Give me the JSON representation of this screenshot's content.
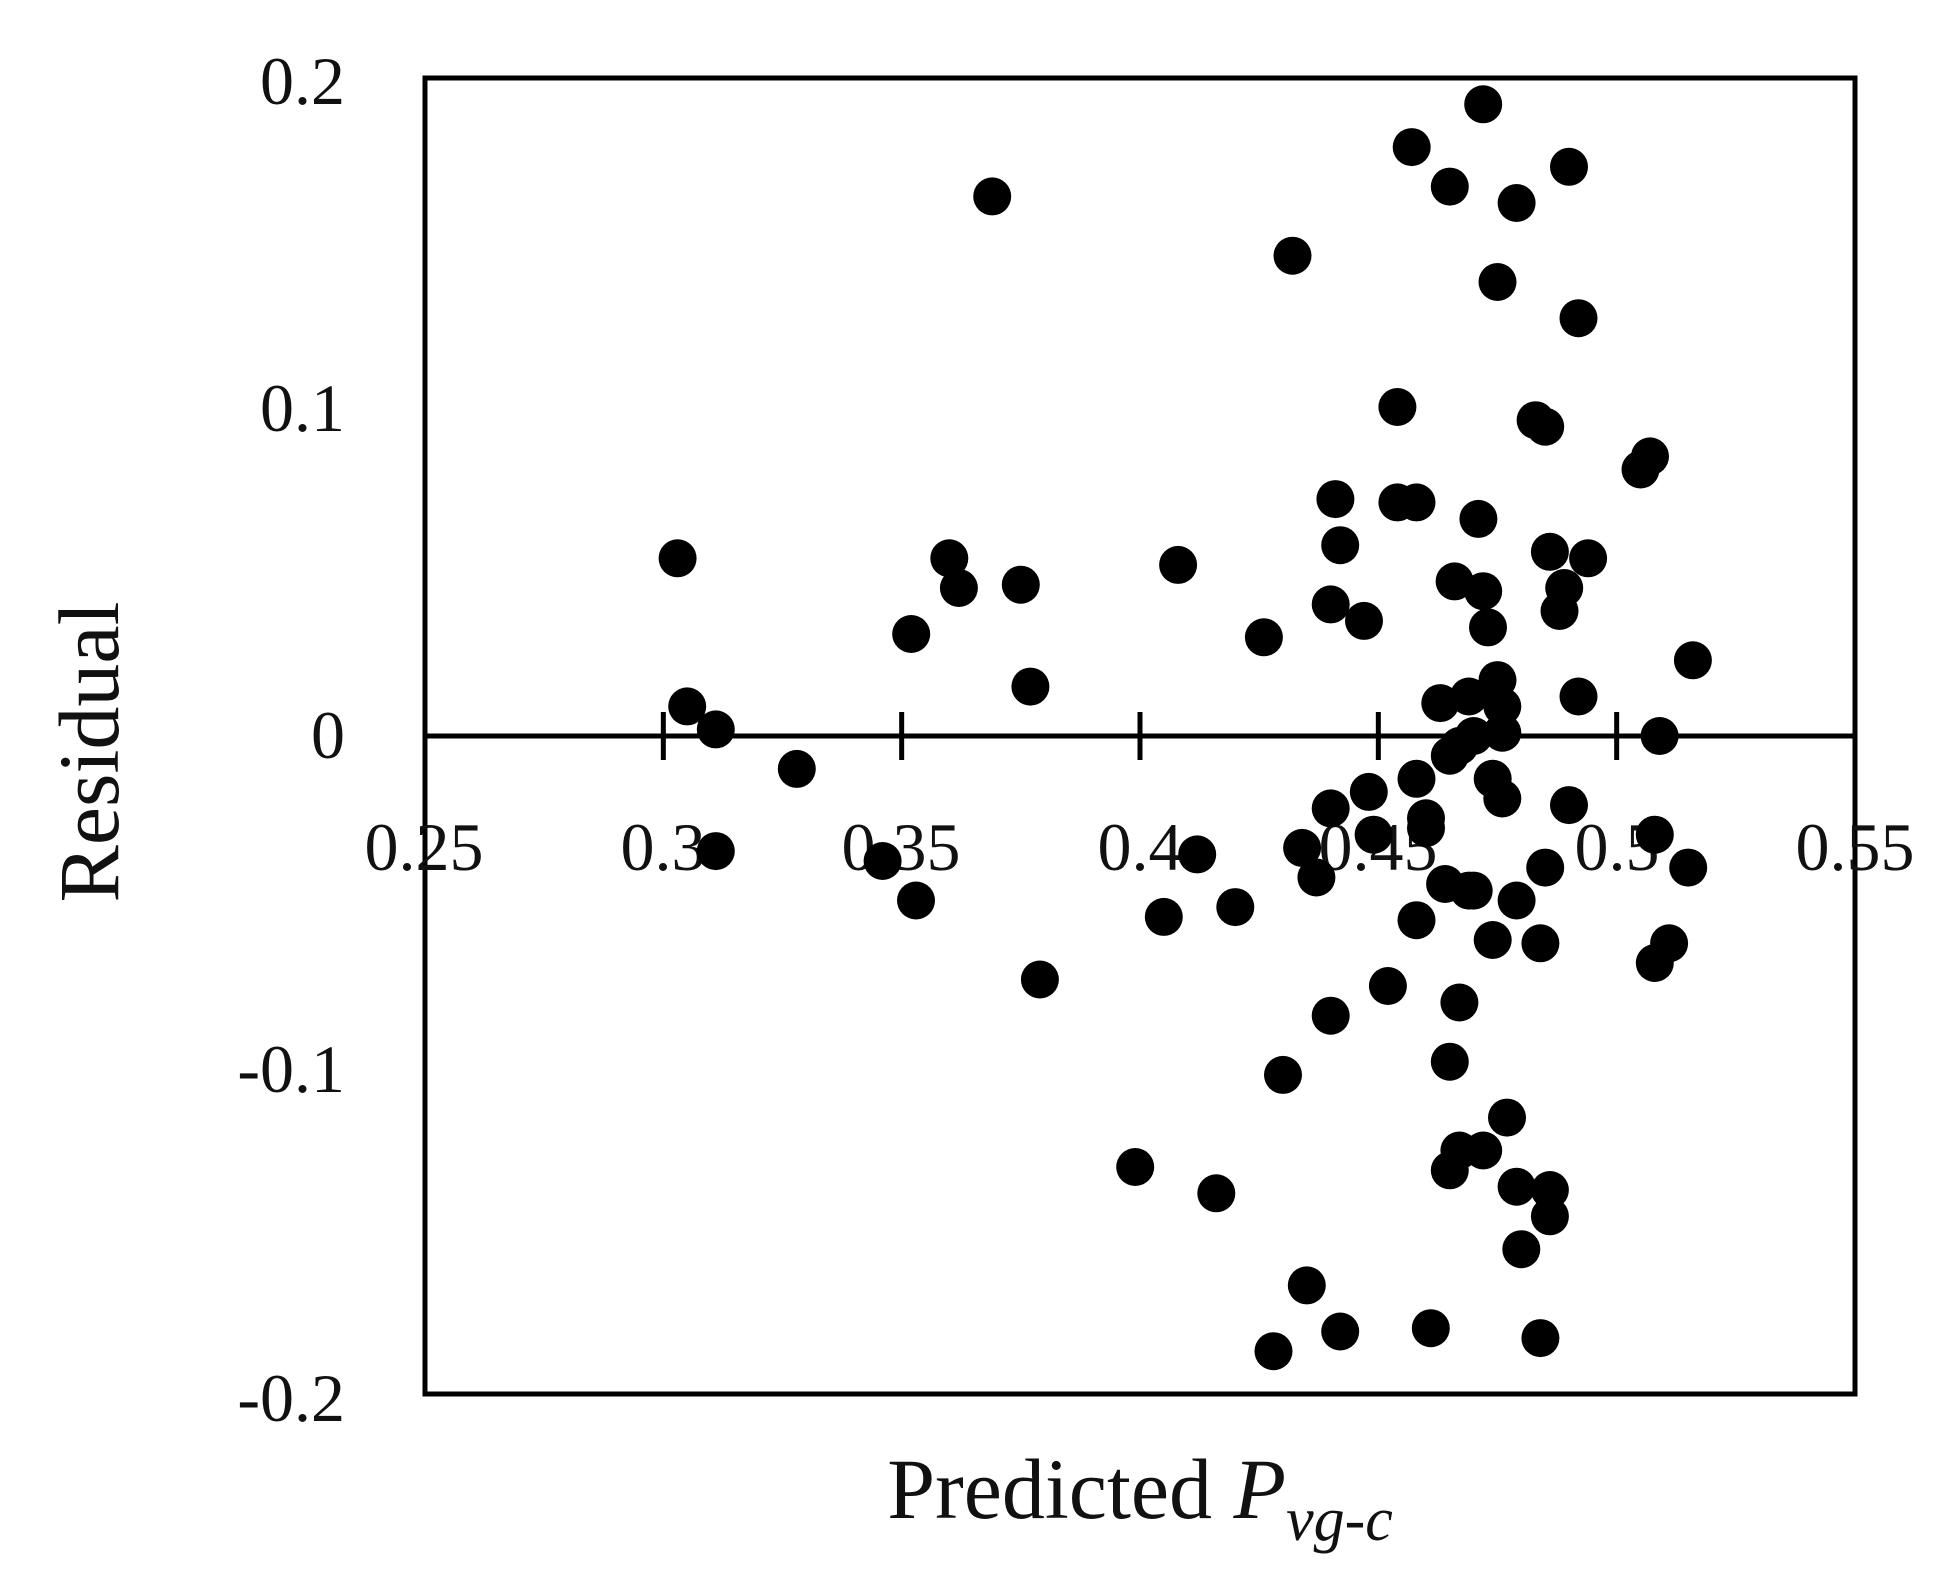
{
  "chart_data": {
    "type": "scatter",
    "xlabel": {
      "text": "Predicted ",
      "symbol": "P",
      "subscript": "vg-c"
    },
    "ylabel": "Residual",
    "xlim": [
      0.25,
      0.55
    ],
    "ylim": [
      -0.2,
      0.2
    ],
    "x_ticks": [
      0.25,
      0.3,
      0.35,
      0.4,
      0.45,
      0.5,
      0.55
    ],
    "x_tick_labels": [
      "0.25",
      "0.3",
      "0.35",
      "0.4",
      "0.45",
      "0.5",
      "0.55"
    ],
    "y_ticks": [
      -0.2,
      -0.1,
      0,
      0.1,
      0.2
    ],
    "y_tick_labels": [
      "-0.2",
      "-0.1",
      "0",
      "0.1",
      "0.2"
    ],
    "grid": false,
    "zero_line": true,
    "marker_color": "#000000",
    "series": [
      {
        "points": [
          [
            0.303,
            0.054
          ],
          [
            0.305,
            0.009
          ],
          [
            0.311,
            0.002
          ],
          [
            0.311,
            -0.035
          ],
          [
            0.328,
            -0.01
          ],
          [
            0.346,
            -0.038
          ],
          [
            0.352,
            0.031
          ],
          [
            0.353,
            -0.05
          ],
          [
            0.36,
            0.054
          ],
          [
            0.362,
            0.045
          ],
          [
            0.369,
            0.164
          ],
          [
            0.375,
            0.046
          ],
          [
            0.377,
            0.015
          ],
          [
            0.379,
            -0.074
          ],
          [
            0.399,
            -0.131
          ],
          [
            0.405,
            -0.055
          ],
          [
            0.408,
            0.052
          ],
          [
            0.412,
            -0.036
          ],
          [
            0.416,
            -0.139
          ],
          [
            0.42,
            -0.052
          ],
          [
            0.426,
            0.03
          ],
          [
            0.428,
            -0.187
          ],
          [
            0.43,
            -0.103
          ],
          [
            0.432,
            0.146
          ],
          [
            0.434,
            -0.034
          ],
          [
            0.435,
            -0.167
          ],
          [
            0.437,
            -0.043
          ],
          [
            0.44,
            0.04
          ],
          [
            0.44,
            -0.022
          ],
          [
            0.44,
            -0.085
          ],
          [
            0.441,
            0.072
          ],
          [
            0.442,
            0.058
          ],
          [
            0.442,
            -0.181
          ],
          [
            0.447,
            0.035
          ],
          [
            0.448,
            -0.017
          ],
          [
            0.449,
            -0.03
          ],
          [
            0.452,
            -0.076
          ],
          [
            0.454,
            0.1
          ],
          [
            0.454,
            0.071
          ],
          [
            0.457,
            0.179
          ],
          [
            0.458,
            0.071
          ],
          [
            0.458,
            -0.013
          ],
          [
            0.458,
            -0.056
          ],
          [
            0.46,
            -0.028
          ],
          [
            0.46,
            -0.025
          ],
          [
            0.461,
            -0.18
          ],
          [
            0.463,
            0.01
          ],
          [
            0.464,
            -0.045
          ],
          [
            0.465,
            0.167
          ],
          [
            0.465,
            -0.099
          ],
          [
            0.465,
            -0.132
          ],
          [
            0.465,
            -0.006
          ],
          [
            0.466,
            0.047
          ],
          [
            0.467,
            -0.081
          ],
          [
            0.467,
            -0.126
          ],
          [
            0.467,
            -0.003
          ],
          [
            0.469,
            0.012
          ],
          [
            0.469,
            -0.047
          ],
          [
            0.47,
            0.0
          ],
          [
            0.47,
            -0.047
          ],
          [
            0.471,
            0.066
          ],
          [
            0.472,
            0.192
          ],
          [
            0.472,
            0.044
          ],
          [
            0.472,
            -0.126
          ],
          [
            0.473,
            0.033
          ],
          [
            0.474,
            -0.062
          ],
          [
            0.474,
            -0.013
          ],
          [
            0.475,
            0.138
          ],
          [
            0.475,
            0.017
          ],
          [
            0.476,
            0.009
          ],
          [
            0.476,
            -0.019
          ],
          [
            0.476,
            0.001
          ],
          [
            0.477,
            -0.116
          ],
          [
            0.479,
            0.162
          ],
          [
            0.479,
            -0.05
          ],
          [
            0.479,
            -0.137
          ],
          [
            0.48,
            -0.156
          ],
          [
            0.483,
            0.096
          ],
          [
            0.484,
            -0.183
          ],
          [
            0.484,
            -0.063
          ],
          [
            0.485,
            -0.04
          ],
          [
            0.485,
            0.094
          ],
          [
            0.486,
            0.056
          ],
          [
            0.486,
            -0.138
          ],
          [
            0.486,
            -0.146
          ],
          [
            0.488,
            0.038
          ],
          [
            0.489,
            0.045
          ],
          [
            0.49,
            -0.021
          ],
          [
            0.49,
            0.173
          ],
          [
            0.492,
            0.127
          ],
          [
            0.492,
            0.012
          ],
          [
            0.494,
            0.054
          ],
          [
            0.505,
            0.081
          ],
          [
            0.507,
            0.085
          ],
          [
            0.508,
            -0.03
          ],
          [
            0.508,
            -0.069
          ],
          [
            0.509,
            0.0
          ],
          [
            0.511,
            -0.063
          ],
          [
            0.515,
            -0.04
          ],
          [
            0.516,
            0.023
          ]
        ]
      }
    ]
  }
}
